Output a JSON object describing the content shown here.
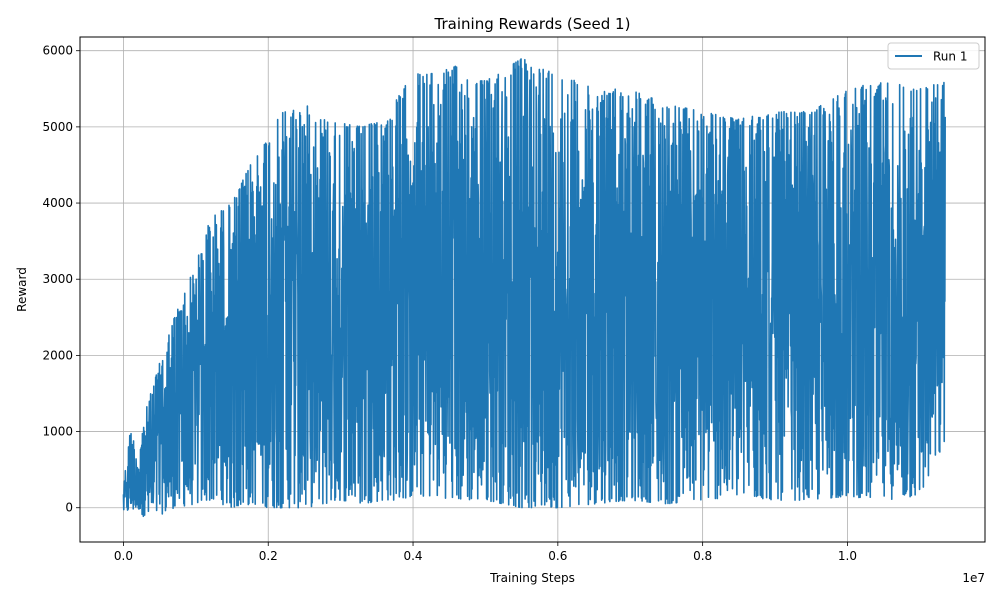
{
  "chart_data": {
    "type": "line",
    "title": "Training Rewards (Seed 1)",
    "xlabel": "Training Steps",
    "ylabel": "Reward",
    "x_offset_label": "1e7",
    "xlim": [
      -0.06,
      1.19
    ],
    "ylim": [
      -450,
      6180
    ],
    "x_ticks": [
      0.0,
      0.2,
      0.4,
      0.6,
      0.8,
      1.0
    ],
    "x_tick_labels": [
      "0.0",
      "0.2",
      "0.4",
      "0.6",
      "0.8",
      "1.0"
    ],
    "y_ticks": [
      0,
      1000,
      2000,
      3000,
      4000,
      5000,
      6000
    ],
    "y_tick_labels": [
      "0",
      "1000",
      "2000",
      "3000",
      "4000",
      "5000",
      "6000"
    ],
    "grid": true,
    "legend": {
      "position": "top-right",
      "entries": [
        "Run 1"
      ]
    },
    "colors": {
      "series": "#1f77b4"
    },
    "series": [
      {
        "name": "Run 1",
        "envelope": {
          "x": [
            0.0,
            0.01,
            0.02,
            0.03,
            0.05,
            0.07,
            0.1,
            0.12,
            0.15,
            0.18,
            0.2,
            0.22,
            0.25,
            0.28,
            0.3,
            0.33,
            0.36,
            0.38,
            0.4,
            0.43,
            0.46,
            0.5,
            0.55,
            0.6,
            0.65,
            0.7,
            0.75,
            0.8,
            0.85,
            0.9,
            0.95,
            1.0,
            1.05,
            1.1,
            1.135
          ],
          "upper": [
            300,
            1050,
            650,
            1250,
            1900,
            2500,
            3200,
            3800,
            4000,
            4600,
            4900,
            5200,
            5300,
            5100,
            5050,
            5000,
            5100,
            5400,
            5700,
            5700,
            5800,
            5600,
            5900,
            5700,
            5500,
            5500,
            5300,
            5200,
            5100,
            5200,
            5200,
            5500,
            5600,
            5500,
            5600
          ],
          "lower": [
            -50,
            -50,
            0,
            -150,
            -100,
            0,
            50,
            100,
            0,
            50,
            0,
            0,
            0,
            50,
            100,
            50,
            100,
            100,
            150,
            150,
            100,
            100,
            0,
            0,
            50,
            100,
            50,
            100,
            150,
            100,
            100,
            150,
            100,
            150,
            850
          ]
        }
      }
    ]
  }
}
